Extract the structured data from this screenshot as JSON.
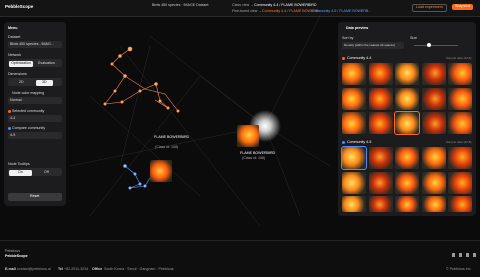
{
  "header": {
    "logo": "PebbleScope",
    "dataset": "Birds 450 species · IMAGE Dataset",
    "class_view_label": "Class view →",
    "class_view_path": "Community 4-4 / FLAME BOWERBIRD",
    "finetuned_view_label": "Fine-tuned view →",
    "finetuned_path_1": "Community 4-4 / FLAME BOWERB...",
    "finetuned_path_2": "Community 4-5 / FLAME BOWERB...",
    "load_button": "Load experiment",
    "snapshot_button": "Snapshot"
  },
  "menu": {
    "title": "Menu",
    "dataset_label": "Dataset",
    "dataset_value": "Birds 450 species - IMAG...",
    "network_label": "Network",
    "network_options": [
      "Optimization",
      "Evaluation"
    ],
    "dimensions_label": "Dimensions",
    "dimension_options": [
      "2D",
      "3D"
    ],
    "color_label": "Node color mapping",
    "color_value": "Normal",
    "selected_label": "Selected community",
    "selected_value": "4-4",
    "compare_label": "Compare community",
    "compare_value": "4-5",
    "tooltips_label": "Node Tooltips",
    "tooltip_options": [
      "On",
      "Off"
    ],
    "reset_button": "Reset"
  },
  "graph": {
    "nodes": [
      {
        "label": "FLAME BOWERBIRD",
        "sublabel": "(Class id: 108)"
      },
      {
        "label": "FLAME BOWERBIRD",
        "sublabel": "(Class id: 108)"
      }
    ]
  },
  "preview": {
    "title": "Data preview",
    "sort_label": "Sort by",
    "sort_value": "Density (within the nearest db spaces)",
    "size_label": "Size",
    "sections": [
      {
        "name": "Community 4-4",
        "note": "Sample data (4/15)"
      },
      {
        "name": "Community 4-5",
        "note": "Sample data (4/15)"
      }
    ]
  },
  "footer": {
    "brand_small": "Pebblous",
    "brand": "PebbleScope",
    "email_label": "E-mail",
    "email": "contact@pebblous.ai",
    "tel_label": "Tel",
    "tel": "+82-2011-3234",
    "office_label": "Office",
    "office": "South Korea · Seoul · Gangnam · Pebblous",
    "copyright": "© Pebblous Inc."
  }
}
